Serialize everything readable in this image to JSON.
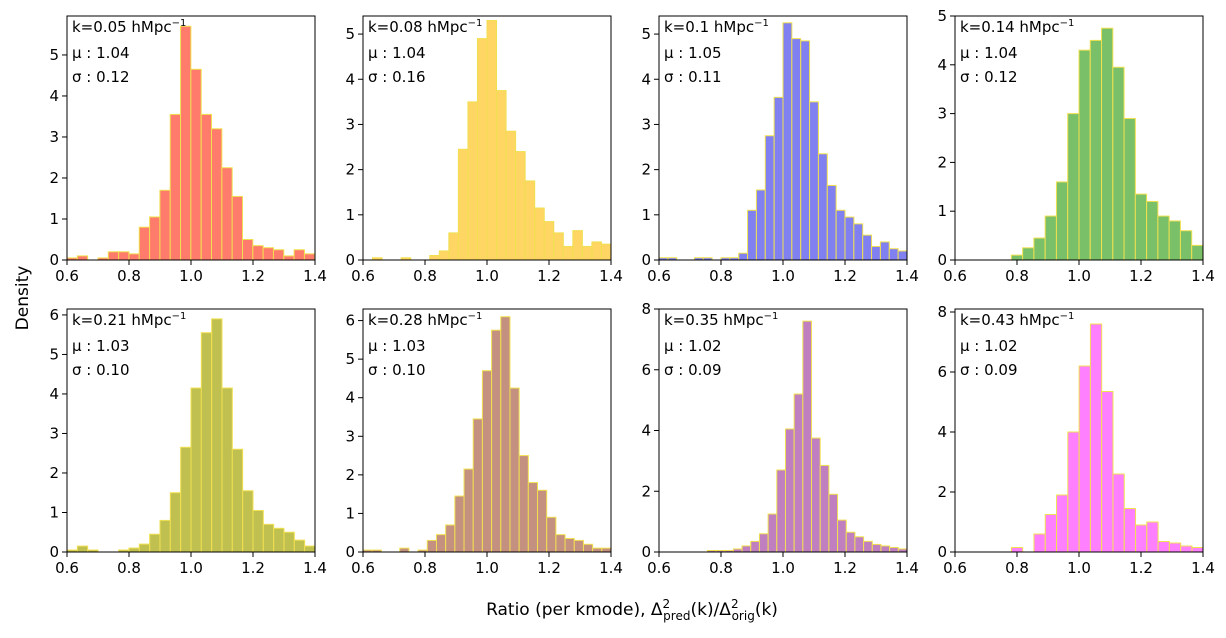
{
  "chart_data": {
    "type": "histogram-grid",
    "xlabel_prefix": "Ratio (per kmode), ",
    "xlabel_math": {
      "delta": "Δ",
      "sq": "2",
      "pred": "pred",
      "orig": "orig",
      "arg": "(k)",
      "slash": "/"
    },
    "ylabel": "Density",
    "bin_edges": [
      0.6,
      0.64,
      0.68,
      0.72,
      0.76,
      0.8,
      0.84,
      0.88,
      0.92,
      0.96,
      1.0,
      1.04,
      1.08,
      1.12,
      1.16,
      1.2,
      1.24,
      1.28,
      1.32,
      1.36,
      1.4
    ],
    "bin_start": 0.6,
    "bin_width": 0.04,
    "xlim": [
      0.6,
      1.4
    ],
    "xticks": [
      "0.6",
      "0.8",
      "1.0",
      "1.2",
      "1.4"
    ],
    "xtick_values": [
      0.6,
      0.8,
      1.0,
      1.2,
      1.4
    ],
    "edge_color": "#f0e050",
    "panels": [
      {
        "k_text": "k=0.05 hMpc",
        "k_sup": "−1",
        "mu_label": "μ : 1.04",
        "sigma_label": "σ : 0.12",
        "color": "#ff7b6b",
        "ylim": [
          0,
          5.95
        ],
        "yticks": [
          0,
          1,
          2,
          3,
          4,
          5
        ],
        "densities": [
          0.05,
          0.1,
          0.0,
          0.05,
          0.2,
          0.2,
          0.15,
          0.8,
          1.05,
          1.7,
          3.55,
          5.7,
          4.65,
          3.55,
          3.2,
          2.25,
          1.55,
          0.5,
          0.35,
          0.3,
          0.25,
          0.1,
          0.25,
          0.15
        ],
        "bins_start": 0.6,
        "bins_width": 0.0333
      },
      {
        "k_text": "k=0.08 hMpc",
        "k_sup": "−1",
        "mu_label": "μ : 1.04",
        "sigma_label": "σ : 0.16",
        "color": "#ffd564",
        "ylim": [
          0,
          5.4
        ],
        "yticks": [
          0,
          1,
          2,
          3,
          4,
          5
        ],
        "densities": [
          0.0,
          0.05,
          0.0,
          0.0,
          0.05,
          0.0,
          0.0,
          0.1,
          0.2,
          0.6,
          2.45,
          3.5,
          4.9,
          5.3,
          3.75,
          2.85,
          2.4,
          1.75,
          1.15,
          0.85,
          0.6,
          0.3,
          0.65,
          0.3,
          0.4,
          0.35
        ],
        "bins_start": 0.6,
        "bins_width": 0.03077
      },
      {
        "k_text": "k=0.1 hMpc",
        "k_sup": "−1",
        "mu_label": "μ : 1.05",
        "sigma_label": "σ : 0.11",
        "color": "#8080f0",
        "ylim": [
          0,
          5.4
        ],
        "yticks": [
          0,
          1,
          2,
          3,
          4,
          5
        ],
        "densities": [
          0.05,
          0.05,
          0.0,
          0.0,
          0.05,
          0.05,
          0.0,
          0.05,
          0.05,
          0.15,
          1.1,
          1.55,
          2.75,
          3.6,
          5.25,
          4.9,
          4.85,
          3.5,
          2.35,
          1.65,
          1.1,
          0.95,
          0.8,
          0.55,
          0.3,
          0.4,
          0.25,
          0.2
        ],
        "bins_start": 0.6,
        "bins_width": 0.02857
      },
      {
        "k_text": "k=0.14 hMpc",
        "k_sup": "−1",
        "mu_label": "μ : 1.04",
        "sigma_label": "σ : 0.12",
        "color": "#7ac069",
        "ylim": [
          0,
          5.0
        ],
        "yticks": [
          0,
          1,
          2,
          3,
          4,
          5
        ],
        "densities": [
          0.0,
          0.0,
          0.0,
          0.0,
          0.0,
          0.1,
          0.25,
          0.45,
          0.9,
          1.6,
          3.0,
          4.3,
          4.5,
          4.75,
          3.95,
          2.9,
          1.35,
          1.2,
          0.9,
          0.8,
          0.6,
          0.3,
          0.25
        ],
        "bins_start": 0.6,
        "bins_width": 0.03636
      },
      {
        "k_text": "k=0.21 hMpc",
        "k_sup": "−1",
        "mu_label": "μ : 1.03",
        "sigma_label": "σ : 0.10",
        "color": "#c0c050",
        "ylim": [
          0,
          6.15
        ],
        "yticks": [
          0,
          1,
          2,
          3,
          4,
          5,
          6
        ],
        "densities": [
          0.05,
          0.15,
          0.05,
          0.0,
          0.0,
          0.05,
          0.1,
          0.2,
          0.45,
          0.8,
          1.5,
          2.65,
          4.15,
          5.55,
          5.9,
          4.15,
          2.6,
          1.55,
          1.05,
          0.7,
          0.6,
          0.5,
          0.3,
          0.15,
          0.1
        ],
        "bins_start": 0.6,
        "bins_width": 0.03333
      },
      {
        "k_text": "k=0.28 hMpc",
        "k_sup": "−1",
        "mu_label": "μ : 1.03",
        "sigma_label": "σ : 0.10",
        "color": "#c49080",
        "ylim": [
          0,
          6.3
        ],
        "yticks": [
          0,
          1,
          2,
          3,
          4,
          5,
          6
        ],
        "densities": [
          0.05,
          0.05,
          0.0,
          0.0,
          0.1,
          0.0,
          0.05,
          0.3,
          0.45,
          0.7,
          1.45,
          2.15,
          3.45,
          4.7,
          5.75,
          6.1,
          4.25,
          2.5,
          1.8,
          1.6,
          0.9,
          0.45,
          0.35,
          0.3,
          0.2,
          0.1,
          0.1
        ],
        "bins_start": 0.6,
        "bins_width": 0.02963
      },
      {
        "k_text": "k=0.35 hMpc",
        "k_sup": "−1",
        "mu_label": "μ : 1.02",
        "sigma_label": "σ : 0.09",
        "color": "#c080c0",
        "ylim": [
          0,
          8.0
        ],
        "yticks": [
          0,
          2,
          4,
          6,
          8
        ],
        "densities": [
          0.0,
          0.0,
          0.05,
          0.05,
          0.05,
          0.1,
          0.2,
          0.35,
          0.6,
          1.25,
          2.7,
          4.05,
          5.2,
          7.6,
          3.75,
          2.85,
          1.9,
          1.05,
          0.65,
          0.5,
          0.35,
          0.25,
          0.2,
          0.15,
          0.1
        ],
        "bins_start": 0.7,
        "bins_width": 0.028
      },
      {
        "k_text": "k=0.43 hMpc",
        "k_sup": "−1",
        "mu_label": "μ : 1.02",
        "sigma_label": "σ : 0.09",
        "color": "#ff80ff",
        "ylim": [
          0,
          8.1
        ],
        "yticks": [
          0,
          2,
          4,
          6,
          8
        ],
        "densities": [
          0.0,
          0.0,
          0.0,
          0.0,
          0.0,
          0.15,
          0.0,
          0.6,
          1.25,
          1.9,
          4.0,
          6.2,
          7.6,
          5.35,
          2.6,
          1.45,
          0.9,
          1.0,
          0.35,
          0.3,
          0.2,
          0.15,
          0.25
        ],
        "bins_start": 0.6,
        "bins_width": 0.0364
      }
    ]
  }
}
